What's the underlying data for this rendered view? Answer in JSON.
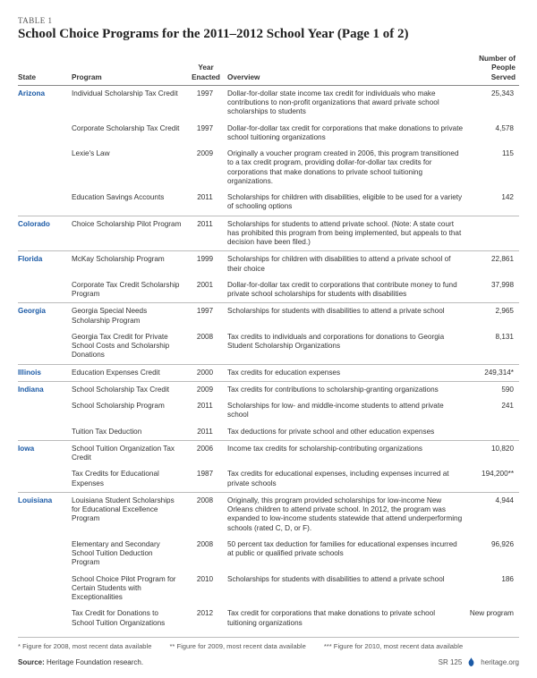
{
  "table_label": "TABLE 1",
  "title": "School Choice Programs for the 2011–2012 School Year (Page 1 of 2)",
  "columns": {
    "state": "State",
    "program": "Program",
    "year": "Year Enacted",
    "overview": "Overview",
    "served": "Number of People Served"
  },
  "rows": [
    {
      "state": "Arizona",
      "first": true,
      "program": "Individual Scholarship Tax Credit",
      "year": "1997",
      "overview": "Dollar-for-dollar state income tax credit for individuals who make contributions to non-profit organizations that award private school scholarships to students",
      "served": "25,343"
    },
    {
      "state": "",
      "program": "Corporate Scholarship Tax Credit",
      "year": "1997",
      "overview": "Dollar-for-dollar tax credit for corporations that make donations to private school tuitioning organizations",
      "served": "4,578"
    },
    {
      "state": "",
      "program": "Lexie's Law",
      "year": "2009",
      "overview": "Originally a voucher program created in 2006, this program transitioned to a tax credit program, providing dollar-for-dollar tax credits for corporations that make donations to private school tuitioning organizations.",
      "served": "115"
    },
    {
      "state": "",
      "program": "Education Savings Accounts",
      "year": "2011",
      "overview": "Scholarships for children with disabilities, eligible to be used for a variety of schooling options",
      "served": "142"
    },
    {
      "state": "Colorado",
      "first": true,
      "program": "Choice Scholarship Pilot Program",
      "year": "2011",
      "overview": "Scholarships for students to attend private school. (Note: A state court has prohibited this program from being implemented, but appeals to that decision have been filed.)",
      "served": ""
    },
    {
      "state": "Florida",
      "first": true,
      "program": "McKay Scholarship Program",
      "year": "1999",
      "overview": "Scholarships for children with disabilities to attend a private school of their choice",
      "served": "22,861"
    },
    {
      "state": "",
      "program": "Corporate Tax Credit Scholarship Program",
      "year": "2001",
      "overview": "Dollar-for-dollar tax credit to corporations that contribute money to fund private school scholarships for students with disabilities",
      "served": "37,998"
    },
    {
      "state": "Georgia",
      "first": true,
      "program": "Georgia Special Needs Scholarship Program",
      "year": "1997",
      "overview": "Scholarships for students with disabilities to attend a private school",
      "served": "2,965"
    },
    {
      "state": "",
      "program": "Georgia Tax Credit for Private School Costs and Scholarship Donations",
      "year": "2008",
      "overview": "Tax credits to individuals and corporations for donations to Georgia Student Scholarship Organizations",
      "served": "8,131"
    },
    {
      "state": "Illinois",
      "first": true,
      "program": "Education Expenses Credit",
      "year": "2000",
      "overview": "Tax credits for education expenses",
      "served": "249,314*"
    },
    {
      "state": "Indiana",
      "first": true,
      "program": "School Scholarship Tax Credit",
      "year": "2009",
      "overview": "Tax credits for contributions to scholarship-granting organizations",
      "served": "590"
    },
    {
      "state": "",
      "program": "School Scholarship Program",
      "year": "2011",
      "overview": "Scholarships for low- and middle-income students to attend private school",
      "served": "241"
    },
    {
      "state": "",
      "program": "Tuition Tax Deduction",
      "year": "2011",
      "overview": "Tax deductions for private school and other education expenses",
      "served": ""
    },
    {
      "state": "Iowa",
      "first": true,
      "program": "School Tuition Organization Tax Credit",
      "year": "2006",
      "overview": "Income tax credits for scholarship-contributing organizations",
      "served": "10,820"
    },
    {
      "state": "",
      "program": "Tax Credits for Educational Expenses",
      "year": "1987",
      "overview": "Tax credits for educational expenses, including expenses incurred at private schools",
      "served": "194,200**"
    },
    {
      "state": "Louisiana",
      "first": true,
      "program": "Louisiana Student Scholarships for Educational Excellence Program",
      "year": "2008",
      "overview": "Originally, this program provided scholarships for low-income New Orleans children to attend private school. In 2012, the program was expanded to low-income students statewide that attend underperforming schools (rated C, D, or F).",
      "served": "4,944"
    },
    {
      "state": "",
      "program": "Elementary and Secondary School Tuition Deduction Program",
      "year": "2008",
      "overview": "50 percent tax deduction for families for educational expenses incurred at public or qualified private schools",
      "served": "96,926"
    },
    {
      "state": "",
      "program": "School Choice Pilot Program for Certain Students with Exceptionalities",
      "year": "2010",
      "overview": "Scholarships for students with disabilities to attend a private school",
      "served": "186"
    },
    {
      "state": "",
      "program": "Tax Credit for Donations to School Tuition Organizations",
      "year": "2012",
      "overview": "Tax credit for corporations that make donations to private school tuitioning organizations",
      "served": "New program"
    }
  ],
  "footnotes": [
    "* Figure for 2008, most recent data available",
    "** Figure for 2009, most recent data available",
    "*** Figure for 2010, most recent data available"
  ],
  "source_label": "Source:",
  "source_text": "Heritage Foundation research.",
  "sr_id": "SR 125",
  "site": "heritage.org"
}
